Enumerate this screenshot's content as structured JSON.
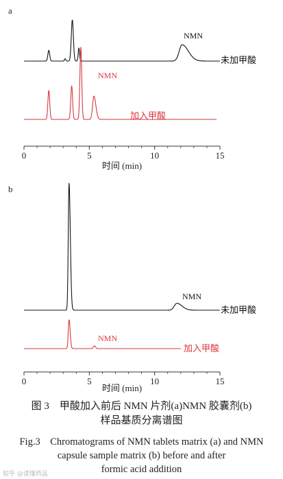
{
  "chart_data": [
    {
      "type": "line",
      "panel_label": "a",
      "xlabel": "时间 (min)",
      "xlim": [
        0,
        15
      ],
      "xticks": [
        0,
        5,
        10,
        15
      ],
      "grid": false,
      "series": [
        {
          "name": "未加甲酸",
          "color": "#111111",
          "peak_label": "NMN",
          "peaks": [
            {
              "x": 1.9,
              "height": 0.23,
              "width": 0.07
            },
            {
              "x": 3.15,
              "height": 0.05,
              "width": 0.05
            },
            {
              "x": 3.7,
              "height": 0.88,
              "width": 0.08
            },
            {
              "x": 4.2,
              "height": 0.28,
              "width": 0.05
            },
            {
              "x": 12.1,
              "height": 0.35,
              "width": 0.22,
              "tailing": 2.2
            }
          ]
        },
        {
          "name": "加入甲酸",
          "color": "#d9363e",
          "peak_label": "NMN",
          "peaks": [
            {
              "x": 1.9,
              "height": 0.62,
              "width": 0.07
            },
            {
              "x": 3.65,
              "height": 0.72,
              "width": 0.07
            },
            {
              "x": 4.35,
              "height": 1.55,
              "width": 0.07
            },
            {
              "x": 5.35,
              "height": 0.5,
              "width": 0.1,
              "tailing": 1.5
            }
          ]
        }
      ]
    },
    {
      "type": "line",
      "panel_label": "b",
      "xlabel": "时间 (min)",
      "xlim": [
        0,
        15
      ],
      "xticks": [
        0,
        5,
        10,
        15
      ],
      "grid": false,
      "series": [
        {
          "name": "未加甲酸",
          "color": "#111111",
          "peak_label": "NMN",
          "peaks": [
            {
              "x": 3.45,
              "height": 1.85,
              "width": 0.06,
              "tailing": 1.6
            },
            {
              "x": 11.7,
              "height": 0.1,
              "width": 0.2,
              "tailing": 2.0
            }
          ]
        },
        {
          "name": "加入甲酸",
          "color": "#d9363e",
          "peak_label": "NMN",
          "peaks": [
            {
              "x": 3.45,
              "height": 0.42,
              "width": 0.06,
              "tailing": 1.4
            },
            {
              "x": 5.4,
              "height": 0.04,
              "width": 0.08
            }
          ]
        }
      ]
    }
  ],
  "caption": {
    "cn_line1": "图 3　甲酸加入前后 NMN 片剂(a)NMN 胶囊剂(b)",
    "cn_line2": "样品基质分离谱图",
    "en_line1": "Fig.3　Chromatograms of NMN tablets matrix (a) and NMN",
    "en_line2": "capsule sample matrix (b) before and after",
    "en_line3": "formic acid addition"
  },
  "watermark": "知乎 @读懂药品"
}
